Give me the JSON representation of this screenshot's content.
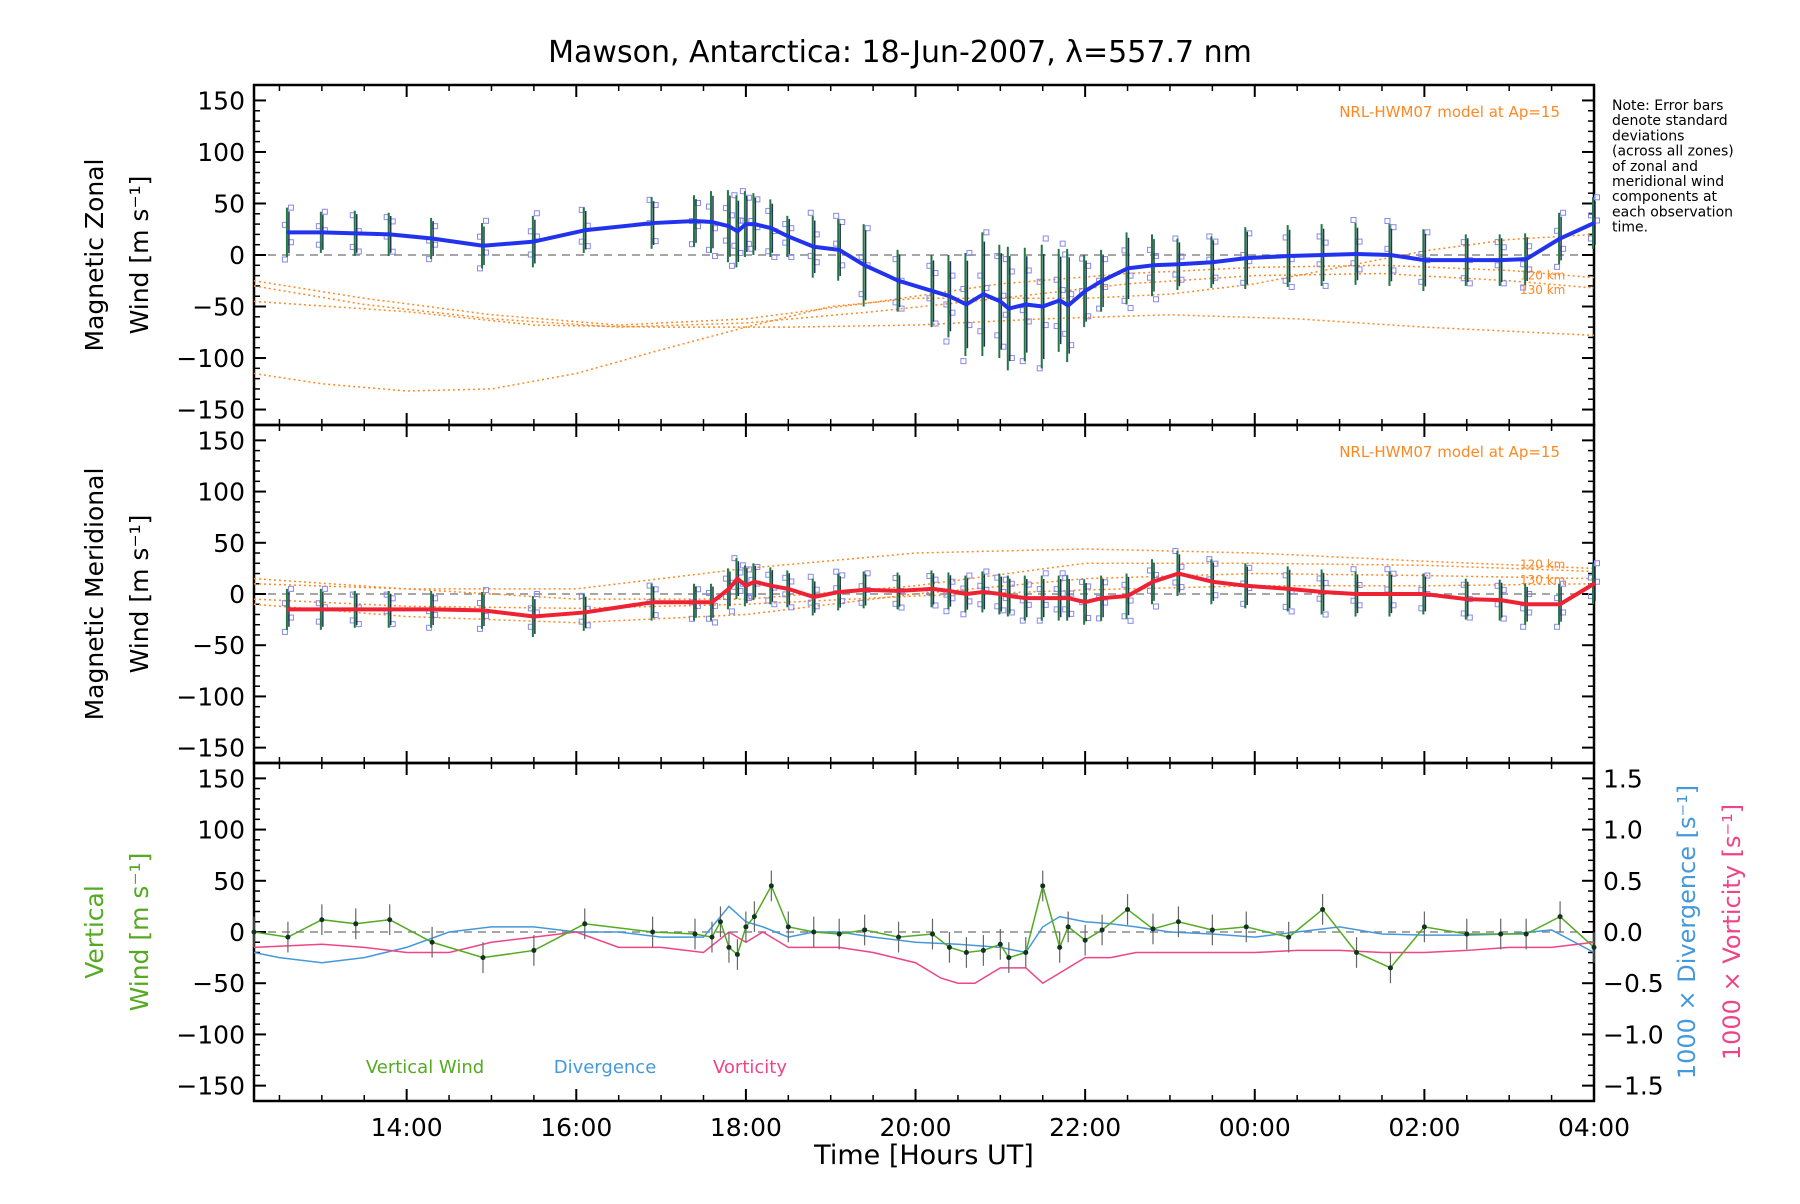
{
  "chart_data": {
    "title": "Mawson, Antarctica: 18-Jun-2007, λ=557.7 nm",
    "note_lines": [
      "Note: Error bars",
      "denote standard",
      "deviations",
      "(across all zones)",
      "of zonal and",
      "meridional wind",
      "components at",
      "each observation",
      "time."
    ],
    "xlabel": "Time [Hours UT]",
    "xlim_hours": [
      12.2,
      28.0
    ],
    "x_ticks": [
      {
        "pos": 14,
        "label": "14:00"
      },
      {
        "pos": 16,
        "label": "16:00"
      },
      {
        "pos": 18,
        "label": "18:00"
      },
      {
        "pos": 20,
        "label": "20:00"
      },
      {
        "pos": 22,
        "label": "22:00"
      },
      {
        "pos": 24,
        "label": "00:00"
      },
      {
        "pos": 26,
        "label": "02:00"
      },
      {
        "pos": 28,
        "label": "04:00"
      }
    ],
    "ylim": [
      -165,
      165
    ],
    "y_ticks": [
      150,
      100,
      50,
      0,
      -50,
      -100,
      -150
    ],
    "y_tick_labels": [
      "150",
      "100",
      "50",
      "0",
      "−50",
      "−100",
      "−150"
    ],
    "colors": {
      "zonal": "#2233ee",
      "meridional": "#ee2233",
      "vertical": "#55aa22",
      "divergence": "#4499dd",
      "vorticity": "#ee4488",
      "model": "#ff8822",
      "zones": "#8888ee",
      "errbar_a": "#227744",
      "errbar_b": "#223355"
    },
    "panels": [
      {
        "id": "zonal",
        "ylabel_line1": "Magnetic Zonal",
        "ylabel_line2": "Wind [m s⁻¹]",
        "model_label": "NRL-HWM07 model at Ap=15",
        "height_labels": [
          "120 km",
          "130 km"
        ],
        "series": {
          "name": "Magnetic Zonal Wind",
          "x": [
            12.6,
            13.0,
            13.4,
            13.8,
            14.3,
            14.9,
            15.5,
            16.1,
            16.9,
            17.4,
            17.6,
            17.8,
            17.9,
            18.0,
            18.1,
            18.3,
            18.5,
            18.8,
            19.1,
            19.4,
            19.8,
            20.2,
            20.4,
            20.6,
            20.8,
            21.0,
            21.1,
            21.3,
            21.5,
            21.7,
            21.8,
            22.0,
            22.2,
            22.5,
            22.8,
            23.1,
            23.5,
            23.9,
            24.4,
            24.8,
            25.2,
            25.6,
            26.0,
            26.5,
            26.9,
            27.2,
            27.6,
            28.0
          ],
          "values": [
            22,
            22,
            21,
            20,
            16,
            9,
            13,
            24,
            31,
            33,
            32,
            28,
            23,
            30,
            30,
            26,
            18,
            8,
            5,
            -10,
            -25,
            -35,
            -40,
            -48,
            -38,
            -45,
            -52,
            -48,
            -50,
            -44,
            -49,
            -35,
            -25,
            -13,
            -10,
            -9,
            -7,
            -3,
            -1,
            0,
            1,
            0,
            -5,
            -5,
            -5,
            -4,
            16,
            31
          ],
          "errors": [
            24,
            20,
            22,
            21,
            20,
            22,
            25,
            22,
            25,
            25,
            30,
            35,
            35,
            32,
            30,
            28,
            20,
            30,
            30,
            40,
            30,
            35,
            40,
            50,
            60,
            55,
            60,
            55,
            60,
            50,
            55,
            35,
            30,
            35,
            30,
            25,
            25,
            30,
            30,
            30,
            30,
            30,
            30,
            25,
            25,
            25,
            25,
            25
          ]
        },
        "model_curves": [
          {
            "x": [
              12.2,
              13.5,
              15,
              16.5,
              18,
              19.5,
              21,
              22.5,
              24,
              25.5,
              27,
              28
            ],
            "values": [
              -25,
              -42,
              -58,
              -68,
              -62,
              -46,
              -28,
              -18,
              -12,
              -10,
              -15,
              -22
            ]
          },
          {
            "x": [
              12.2,
              13.5,
              15,
              16.5,
              18,
              19.5,
              21,
              22.5,
              24,
              25.5,
              27,
              28
            ],
            "values": [
              -30,
              -48,
              -62,
              -70,
              -66,
              -55,
              -42,
              -28,
              -20,
              -18,
              -25,
              -32
            ]
          },
          {
            "x": [
              12.2,
              14,
              15.5,
              17,
              18.5,
              20,
              21.5,
              23,
              24.5,
              26,
              27,
              28
            ],
            "values": [
              -45,
              -55,
              -68,
              -70,
              -70,
              -68,
              -62,
              -58,
              -62,
              -70,
              -74,
              -78
            ]
          },
          {
            "x": [
              12.2,
              13,
              14,
              15,
              16,
              17,
              18,
              19,
              20,
              21,
              22,
              23,
              24,
              25,
              26,
              27,
              28
            ],
            "values": [
              -115,
              -125,
              -132,
              -130,
              -115,
              -92,
              -70,
              -50,
              -42,
              -42,
              -42,
              -38,
              -28,
              -12,
              4,
              15,
              20
            ]
          }
        ]
      },
      {
        "id": "meridional",
        "ylabel_line1": "Magnetic Meridional",
        "ylabel_line2": "Wind [m s⁻¹]",
        "model_label": "NRL-HWM07 model at Ap=15",
        "height_labels": [
          "120 km",
          "130 km"
        ],
        "series": {
          "name": "Magnetic Meridional Wind",
          "x": [
            12.6,
            13.0,
            13.4,
            13.8,
            14.3,
            14.9,
            15.5,
            16.1,
            16.9,
            17.4,
            17.6,
            17.8,
            17.9,
            18.0,
            18.1,
            18.3,
            18.5,
            18.8,
            19.1,
            19.4,
            19.8,
            20.2,
            20.4,
            20.6,
            20.8,
            21.0,
            21.1,
            21.3,
            21.5,
            21.7,
            21.8,
            22.0,
            22.2,
            22.5,
            22.8,
            23.1,
            23.5,
            23.9,
            24.4,
            24.8,
            25.2,
            25.6,
            26.0,
            26.5,
            26.9,
            27.2,
            27.6,
            28.0
          ],
          "values": [
            -15,
            -15,
            -15,
            -15,
            -15,
            -16,
            -22,
            -18,
            -8,
            -8,
            -8,
            5,
            15,
            8,
            12,
            8,
            5,
            -3,
            2,
            4,
            3,
            5,
            3,
            0,
            2,
            0,
            -2,
            -4,
            -4,
            -4,
            -4,
            -8,
            -4,
            -2,
            12,
            20,
            12,
            8,
            5,
            2,
            0,
            0,
            0,
            -5,
            -6,
            -10,
            -10,
            10
          ],
          "errors": [
            20,
            20,
            18,
            18,
            18,
            18,
            20,
            18,
            18,
            18,
            18,
            20,
            20,
            20,
            18,
            18,
            18,
            18,
            18,
            18,
            18,
            18,
            18,
            18,
            20,
            20,
            20,
            22,
            22,
            22,
            22,
            22,
            22,
            22,
            22,
            22,
            22,
            22,
            22,
            22,
            22,
            22,
            20,
            20,
            20,
            20,
            20,
            20
          ]
        },
        "model_curves": [
          {
            "x": [
              12.2,
              14,
              16,
              18,
              20,
              22,
              24,
              26,
              28
            ],
            "values": [
              10,
              5,
              -5,
              -5,
              8,
              30,
              30,
              28,
              22
            ]
          },
          {
            "x": [
              12.2,
              14,
              16,
              18,
              20,
              22,
              24,
              26,
              28
            ],
            "values": [
              15,
              5,
              5,
              25,
              40,
              44,
              40,
              32,
              25
            ]
          },
          {
            "x": [
              12.2,
              14,
              16,
              18,
              20,
              22,
              24,
              26,
              28
            ],
            "values": [
              -10,
              -22,
              -28,
              -20,
              0,
              15,
              20,
              18,
              15
            ]
          },
          {
            "x": [
              12.2,
              14,
              16,
              18,
              20,
              22,
              24,
              26,
              28
            ],
            "values": [
              -5,
              -12,
              -14,
              -10,
              -2,
              4,
              8,
              8,
              10
            ]
          }
        ]
      },
      {
        "id": "vertical",
        "ylabel_line1": "Vertical",
        "ylabel_line2": "Wind [m s⁻¹]",
        "right_axis": {
          "ylim": [
            -1.65,
            1.65
          ],
          "ticks": [
            1.5,
            1.0,
            0.5,
            0.0,
            -0.5,
            -1.0,
            -1.5
          ],
          "tick_labels": [
            "1.5",
            "1.0",
            "0.5",
            "0.0",
            "−0.5",
            "−1.0",
            "−1.5"
          ],
          "label_divergence": "1000 × Divergence [s⁻¹]",
          "label_vorticity": "1000 × Vorticity [s⁻¹]"
        },
        "legend": [
          "Vertical Wind",
          "Divergence",
          "Vorticity"
        ],
        "series": [
          {
            "name": "Vertical Wind",
            "x": [
              12.2,
              12.6,
              13.0,
              13.4,
              13.8,
              14.3,
              14.9,
              15.5,
              16.1,
              16.9,
              17.4,
              17.6,
              17.7,
              17.8,
              17.9,
              18.0,
              18.1,
              18.3,
              18.5,
              18.8,
              19.1,
              19.4,
              19.8,
              20.2,
              20.4,
              20.6,
              20.8,
              21.0,
              21.1,
              21.3,
              21.5,
              21.7,
              21.8,
              22.0,
              22.2,
              22.5,
              22.8,
              23.1,
              23.5,
              23.9,
              24.4,
              24.8,
              25.2,
              25.6,
              26.0,
              26.5,
              26.9,
              27.2,
              27.6,
              28.0
            ],
            "values": [
              0,
              -5,
              12,
              8,
              12,
              -10,
              -25,
              -18,
              8,
              0,
              -2,
              -5,
              10,
              -15,
              -22,
              5,
              15,
              45,
              5,
              0,
              -2,
              2,
              -5,
              -2,
              -15,
              -20,
              -18,
              -12,
              -25,
              -20,
              45,
              -15,
              5,
              -8,
              2,
              22,
              3,
              10,
              2,
              5,
              -5,
              22,
              -20,
              -35,
              5,
              -2,
              -2,
              -2,
              15,
              -15
            ],
            "errors": [
              15,
              15,
              15,
              15,
              15,
              15,
              15,
              15,
              15,
              15,
              15,
              15,
              15,
              15,
              15,
              15,
              15,
              15,
              15,
              15,
              15,
              15,
              15,
              15,
              15,
              15,
              15,
              15,
              15,
              15,
              15,
              15,
              15,
              15,
              15,
              15,
              15,
              15,
              15,
              15,
              15,
              15,
              15,
              15,
              15,
              15,
              15,
              15,
              15,
              15
            ]
          },
          {
            "name": "Divergence",
            "x": [
              12.2,
              12.5,
              13,
              13.5,
              14,
              14.5,
              15,
              15.5,
              16,
              16.5,
              17,
              17.5,
              17.8,
              18,
              18.2,
              18.5,
              18.8,
              19.1,
              19.5,
              20,
              20.5,
              21,
              21.3,
              21.5,
              21.7,
              22,
              22.3,
              22.6,
              23,
              23.5,
              24,
              24.5,
              25,
              25.5,
              26,
              26.5,
              27,
              27.5,
              28
            ],
            "values": [
              -0.2,
              -0.25,
              -0.3,
              -0.25,
              -0.15,
              0.0,
              0.05,
              0.05,
              0.0,
              0.0,
              -0.05,
              -0.05,
              0.25,
              0.1,
              0.05,
              -0.05,
              0.0,
              0.0,
              -0.05,
              -0.1,
              -0.12,
              -0.15,
              -0.2,
              0.05,
              0.15,
              0.1,
              0.08,
              0.05,
              0.0,
              -0.02,
              -0.05,
              0.0,
              0.05,
              -0.02,
              -0.03,
              -0.03,
              -0.02,
              0.02,
              -0.2
            ]
          },
          {
            "name": "Vorticity",
            "x": [
              12.2,
              13,
              13.5,
              14,
              14.5,
              15,
              15.5,
              16,
              16.5,
              17,
              17.5,
              17.8,
              18,
              18.2,
              18.5,
              18.8,
              19.1,
              19.5,
              20,
              20.3,
              20.5,
              20.7,
              21,
              21.3,
              21.5,
              21.7,
              22,
              22.3,
              22.6,
              23,
              23.5,
              24,
              24.5,
              25,
              25.5,
              26,
              26.5,
              27,
              27.5,
              28
            ],
            "values": [
              -0.15,
              -0.12,
              -0.15,
              -0.2,
              -0.2,
              -0.1,
              -0.05,
              0.0,
              -0.15,
              -0.15,
              -0.2,
              0.0,
              -0.1,
              0.0,
              -0.15,
              -0.15,
              -0.15,
              -0.2,
              -0.3,
              -0.45,
              -0.5,
              -0.5,
              -0.35,
              -0.35,
              -0.5,
              -0.4,
              -0.25,
              -0.25,
              -0.2,
              -0.2,
              -0.2,
              -0.2,
              -0.18,
              -0.18,
              -0.2,
              -0.2,
              -0.18,
              -0.15,
              -0.15,
              -0.1
            ]
          }
        ]
      }
    ]
  }
}
